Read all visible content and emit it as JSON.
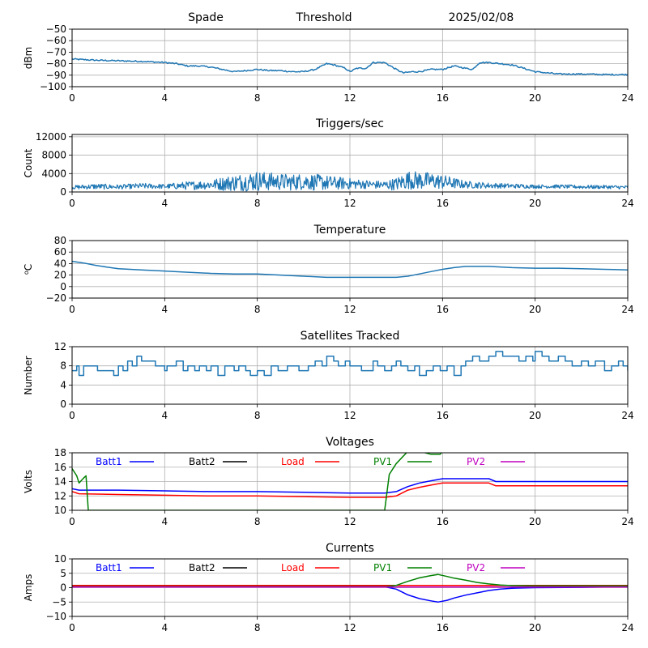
{
  "header": {
    "station": "Spade",
    "mode": "Threshold",
    "date": "2025/02/08"
  },
  "colors": {
    "series_default": "#1f77b4",
    "grid": "#b0b0b0"
  },
  "chart_data": [
    {
      "type": "line",
      "title": "",
      "xlabel": "",
      "ylabel": "dBm",
      "xlim": [
        0,
        24
      ],
      "ylim": [
        -100,
        -50
      ],
      "xticks": [
        0,
        4,
        8,
        12,
        16,
        20,
        24
      ],
      "xtick_labels": [
        "0",
        "4",
        "8",
        "12",
        "16",
        "20",
        "24"
      ],
      "yticks": [
        -100,
        -90,
        -80,
        -70,
        -60,
        -50
      ],
      "ytick_labels": [
        "−100",
        "−90",
        "−80",
        "−70",
        "−60",
        "−50"
      ],
      "grid": true,
      "series": [
        {
          "color": "#1f77b4",
          "x": [
            0,
            1,
            2,
            3,
            4,
            4.5,
            5,
            5.5,
            6,
            6.5,
            7,
            7.5,
            8,
            8.5,
            9,
            9.5,
            10,
            10.5,
            11,
            11.3,
            11.8,
            12,
            12.3,
            12.7,
            13,
            13.5,
            14,
            14.3,
            14.7,
            15,
            15.5,
            16,
            16.5,
            17,
            17.3,
            17.6,
            18,
            18.5,
            19,
            19.5,
            20,
            21,
            22,
            23,
            24
          ],
          "y": [
            -76,
            -77,
            -77.5,
            -78,
            -79,
            -80,
            -82,
            -82,
            -83,
            -85,
            -87,
            -86,
            -85,
            -86,
            -86,
            -87,
            -87,
            -85,
            -80,
            -81,
            -84,
            -87,
            -84,
            -84,
            -79,
            -79,
            -85,
            -88,
            -87,
            -87,
            -85,
            -85,
            -82,
            -84,
            -85,
            -79,
            -79,
            -80,
            -81,
            -84,
            -87,
            -89,
            -89,
            -89.5,
            -89.5
          ]
        }
      ]
    },
    {
      "type": "line",
      "title": "Triggers/sec",
      "xlabel": "",
      "ylabel": "Count",
      "xlim": [
        0,
        24
      ],
      "ylim": [
        0,
        12500
      ],
      "xticks": [
        0,
        4,
        8,
        12,
        16,
        20,
        24
      ],
      "xtick_labels": [
        "0",
        "4",
        "8",
        "12",
        "16",
        "20",
        "24"
      ],
      "yticks": [
        0,
        4000,
        8000,
        12000
      ],
      "ytick_labels": [
        "0",
        "4000",
        "8000",
        "12000"
      ],
      "grid": true,
      "series": [
        {
          "color": "#1f77b4",
          "x": [
            0,
            1,
            2,
            3,
            4,
            5,
            6,
            6.5,
            7,
            7.5,
            8,
            8.5,
            9,
            9.5,
            10,
            10.5,
            11,
            11.5,
            12,
            12.5,
            13,
            13.5,
            14,
            14.5,
            15,
            15.5,
            16,
            16.5,
            17,
            18,
            19,
            20,
            21,
            22,
            23,
            24
          ],
          "y": [
            1000,
            1200,
            1100,
            1300,
            1200,
            1400,
            1600,
            1800,
            2000,
            2200,
            2400,
            2300,
            2200,
            2100,
            2300,
            2100,
            2000,
            1900,
            1800,
            1700,
            1600,
            1500,
            1700,
            2600,
            2500,
            2400,
            2200,
            1900,
            1600,
            1400,
            1300,
            1200,
            1200,
            1100,
            1100,
            1000
          ],
          "noise": [
            400,
            600,
            500,
            600,
            500,
            900,
            1000,
            1500,
            1800,
            2000,
            2200,
            2000,
            1800,
            1800,
            1800,
            1800,
            1600,
            1400,
            1200,
            1000,
            900,
            900,
            1400,
            2000,
            2000,
            1800,
            1600,
            1200,
            800,
            600,
            500,
            400,
            400,
            400,
            400,
            400
          ]
        }
      ]
    },
    {
      "type": "line",
      "title": "Temperature",
      "xlabel": "",
      "ylabel": "°C",
      "ylabel_parts": [
        "o",
        "C"
      ],
      "xlim": [
        0,
        24
      ],
      "ylim": [
        -20,
        80
      ],
      "xticks": [
        0,
        4,
        8,
        12,
        16,
        20,
        24
      ],
      "xtick_labels": [
        "0",
        "4",
        "8",
        "12",
        "16",
        "20",
        "24"
      ],
      "yticks": [
        -20,
        0,
        20,
        40,
        60,
        80
      ],
      "ytick_labels": [
        "−20",
        "0",
        "20",
        "40",
        "60",
        "80"
      ],
      "grid": true,
      "series": [
        {
          "color": "#1f77b4",
          "x": [
            0,
            0.5,
            1,
            1.5,
            2,
            3,
            4,
            5,
            6,
            7,
            8,
            9,
            10,
            11,
            12,
            13,
            14,
            14.5,
            15,
            15.5,
            16,
            16.5,
            17,
            18,
            19,
            20,
            21,
            22,
            23,
            24
          ],
          "y": [
            44,
            41,
            37,
            34,
            31,
            29,
            27,
            25,
            23,
            22,
            22,
            20,
            18,
            16,
            16,
            16,
            16,
            18,
            22,
            26,
            30,
            33,
            35,
            35,
            33,
            32,
            32,
            31,
            30,
            29
          ]
        }
      ]
    },
    {
      "type": "line",
      "title": "Satellites Tracked",
      "xlabel": "",
      "ylabel": "Number",
      "xlim": [
        0,
        24
      ],
      "ylim": [
        0,
        12
      ],
      "xticks": [
        0,
        4,
        8,
        12,
        16,
        20,
        24
      ],
      "xtick_labels": [
        "0",
        "4",
        "8",
        "12",
        "16",
        "20",
        "24"
      ],
      "yticks": [
        0,
        4,
        8,
        12
      ],
      "ytick_labels": [
        "0",
        "4",
        "8",
        "12"
      ],
      "grid": true,
      "series": [
        {
          "color": "#1f77b4",
          "step": true,
          "x": [
            0,
            0.2,
            0.3,
            0.5,
            1,
            1.1,
            1.6,
            1.8,
            2,
            2.2,
            2.4,
            2.6,
            2.8,
            3,
            3.3,
            3.6,
            4,
            4.1,
            4.3,
            4.5,
            4.8,
            5,
            5.3,
            5.5,
            5.8,
            6,
            6.3,
            6.6,
            7,
            7.2,
            7.5,
            7.7,
            8,
            8.3,
            8.6,
            8.9,
            9.3,
            9.8,
            10.2,
            10.5,
            10.8,
            11,
            11.3,
            11.5,
            11.8,
            12,
            12.5,
            13,
            13.2,
            13.5,
            13.8,
            14,
            14.2,
            14.5,
            14.8,
            15,
            15.3,
            15.6,
            15.9,
            16.2,
            16.5,
            16.8,
            17,
            17.3,
            17.6,
            18,
            18.3,
            18.6,
            19,
            19.3,
            19.6,
            19.9,
            20,
            20.3,
            20.6,
            21,
            21.3,
            21.6,
            22,
            22.3,
            22.6,
            23,
            23.3,
            23.6,
            23.8,
            24
          ],
          "y": [
            7,
            8,
            6,
            8,
            8,
            7,
            7,
            6,
            8,
            7,
            9,
            8,
            10,
            9,
            9,
            8,
            7,
            8,
            8,
            9,
            7,
            8,
            7,
            8,
            7,
            8,
            6,
            8,
            7,
            8,
            7,
            6,
            7,
            6,
            8,
            7,
            8,
            7,
            8,
            9,
            8,
            10,
            9,
            8,
            9,
            8,
            7,
            9,
            8,
            7,
            8,
            9,
            8,
            7,
            8,
            6,
            7,
            8,
            7,
            8,
            6,
            8,
            9,
            10,
            9,
            10,
            11,
            10,
            10,
            9,
            10,
            9,
            11,
            10,
            9,
            10,
            9,
            8,
            9,
            8,
            9,
            7,
            8,
            9,
            8,
            7
          ]
        }
      ]
    },
    {
      "type": "line",
      "title": "Voltages",
      "xlabel": "",
      "ylabel": "Volts",
      "xlim": [
        0,
        24
      ],
      "ylim": [
        10,
        18
      ],
      "xticks": [
        0,
        4,
        8,
        12,
        16,
        20,
        24
      ],
      "xtick_labels": [
        "0",
        "4",
        "8",
        "12",
        "16",
        "20",
        "24"
      ],
      "yticks": [
        10,
        12,
        14,
        16,
        18
      ],
      "ytick_labels": [
        "10",
        "12",
        "14",
        "16",
        "18"
      ],
      "grid": true,
      "legend": "inside-top",
      "series": [
        {
          "name": "Batt1",
          "color": "#0000ff",
          "x": [
            0,
            0.3,
            2,
            4,
            6,
            8,
            10,
            12,
            13.5,
            14,
            14.5,
            15,
            15.5,
            16,
            17,
            18,
            18.3,
            19,
            20,
            22,
            24
          ],
          "y": [
            13.0,
            12.8,
            12.8,
            12.7,
            12.6,
            12.6,
            12.5,
            12.4,
            12.4,
            12.6,
            13.3,
            13.8,
            14.1,
            14.4,
            14.4,
            14.4,
            14.0,
            14.0,
            14.0,
            14.0,
            14.0
          ]
        },
        {
          "name": "Batt2",
          "color": "#000000",
          "x": [],
          "y": []
        },
        {
          "name": "Load",
          "color": "#ff0000",
          "x": [
            0,
            0.3,
            2,
            4,
            6,
            8,
            10,
            12,
            13.5,
            14,
            14.5,
            15,
            15.5,
            16,
            17,
            18,
            18.3,
            19,
            20,
            22,
            24
          ],
          "y": [
            12.6,
            12.3,
            12.2,
            12.1,
            12.0,
            12.0,
            11.9,
            11.8,
            11.8,
            12.0,
            12.8,
            13.2,
            13.5,
            13.8,
            13.8,
            13.8,
            13.4,
            13.4,
            13.4,
            13.4,
            13.4
          ]
        },
        {
          "name": "PV1",
          "color": "#008000",
          "x": [
            0,
            0.2,
            0.3,
            0.5,
            0.6,
            0.7,
            13.5,
            13.7,
            14,
            14.5,
            15,
            15.5,
            15.9,
            16
          ],
          "y": [
            15.8,
            14.8,
            13.8,
            14.5,
            14.8,
            10.0,
            10.0,
            15.0,
            16.5,
            18.2,
            18.2,
            17.8,
            17.8,
            18.2
          ]
        },
        {
          "name": "PV2",
          "color": "#bf00bf",
          "x": [],
          "y": []
        }
      ]
    },
    {
      "type": "line",
      "title": "Currents",
      "xlabel": "",
      "ylabel": "Amps",
      "xlim": [
        0,
        24
      ],
      "ylim": [
        -10,
        10
      ],
      "xticks": [
        0,
        4,
        8,
        12,
        16,
        20,
        24
      ],
      "xtick_labels": [
        "0",
        "4",
        "8",
        "12",
        "16",
        "20",
        "24"
      ],
      "yticks": [
        -10,
        -5,
        0,
        5,
        10
      ],
      "ytick_labels": [
        "−10",
        "−5",
        "0",
        "5",
        "10"
      ],
      "grid": true,
      "legend": "inside-top",
      "series": [
        {
          "name": "Batt1",
          "color": "#0000ff",
          "x": [
            0,
            2,
            4,
            6,
            8,
            10,
            12,
            13.5,
            14,
            14.5,
            15,
            15.5,
            15.8,
            16.2,
            16.5,
            17,
            17.5,
            18,
            18.5,
            19,
            20,
            22,
            24
          ],
          "y": [
            0.3,
            0.3,
            0.3,
            0.3,
            0.3,
            0.3,
            0.3,
            0.3,
            -0.5,
            -2.5,
            -3.8,
            -4.6,
            -5.0,
            -4.4,
            -3.6,
            -2.6,
            -1.8,
            -1.0,
            -0.5,
            -0.2,
            0.0,
            0.1,
            0.3
          ]
        },
        {
          "name": "Batt2",
          "color": "#000000",
          "x": [],
          "y": []
        },
        {
          "name": "Load",
          "color": "#ff0000",
          "x": [
            0,
            24
          ],
          "y": [
            0.8,
            0.8
          ]
        },
        {
          "name": "PV1",
          "color": "#008000",
          "x": [
            0,
            13.5,
            14,
            14.5,
            15,
            15.5,
            15.8,
            16.2,
            16.5,
            17,
            17.5,
            18,
            18.5,
            19,
            20,
            24
          ],
          "y": [
            0.3,
            0.3,
            0.8,
            2.2,
            3.4,
            4.2,
            4.6,
            3.9,
            3.3,
            2.6,
            1.8,
            1.3,
            0.9,
            0.7,
            0.6,
            0.6
          ]
        },
        {
          "name": "PV2",
          "color": "#bf00bf",
          "x": [
            0,
            24
          ],
          "y": [
            0.2,
            0.2
          ]
        }
      ]
    }
  ]
}
